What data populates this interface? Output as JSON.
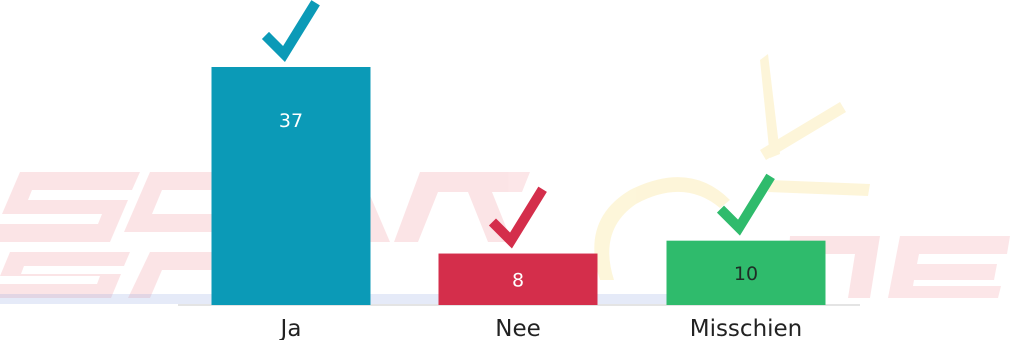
{
  "chart_data": {
    "type": "bar",
    "categories": [
      "Ja",
      "Nee",
      "Misschien"
    ],
    "values": [
      37,
      8,
      10
    ],
    "ylim": [
      0,
      37
    ],
    "colors": [
      "#0b9ab7",
      "#d42e4b",
      "#2fbb6c"
    ],
    "value_label_colors": [
      "#ffffff",
      "#ffffff",
      "#1f2d26"
    ],
    "marker_icon": "checkmark-icon",
    "legend": "none",
    "grid": false
  },
  "watermark": {
    "logo_icon": "screenshot-watermark-logo"
  }
}
